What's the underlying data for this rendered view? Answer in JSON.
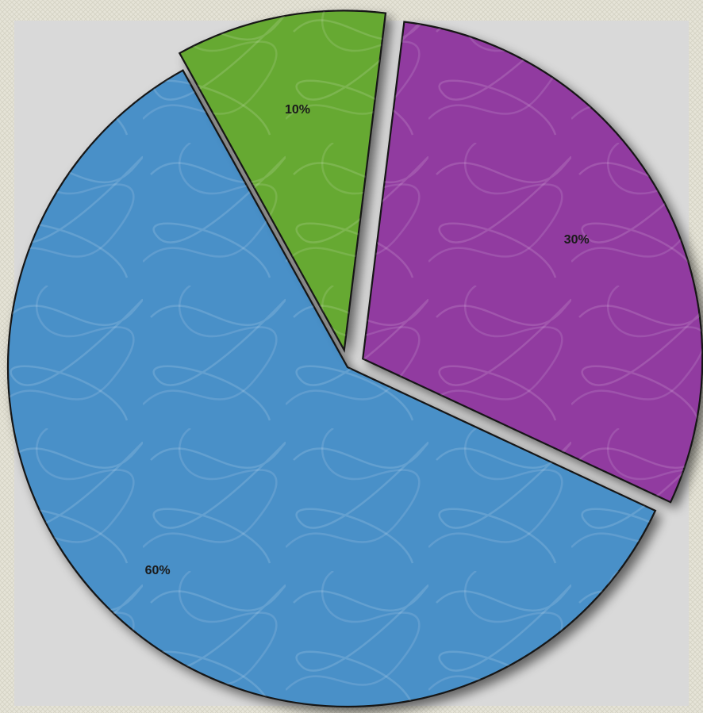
{
  "chart_data": {
    "type": "pie",
    "slices": [
      {
        "value": 60,
        "label": "60%",
        "color": "#4a90c8"
      },
      {
        "value": 30,
        "label": "30%",
        "color": "#913aa0"
      },
      {
        "value": 10,
        "label": "10%",
        "color": "#66a932"
      }
    ],
    "exploded": true,
    "legend": "none",
    "colors": {
      "page_background": "#e6e4d8",
      "plot_background": "#d9d9d9",
      "outline": "#141414"
    }
  }
}
